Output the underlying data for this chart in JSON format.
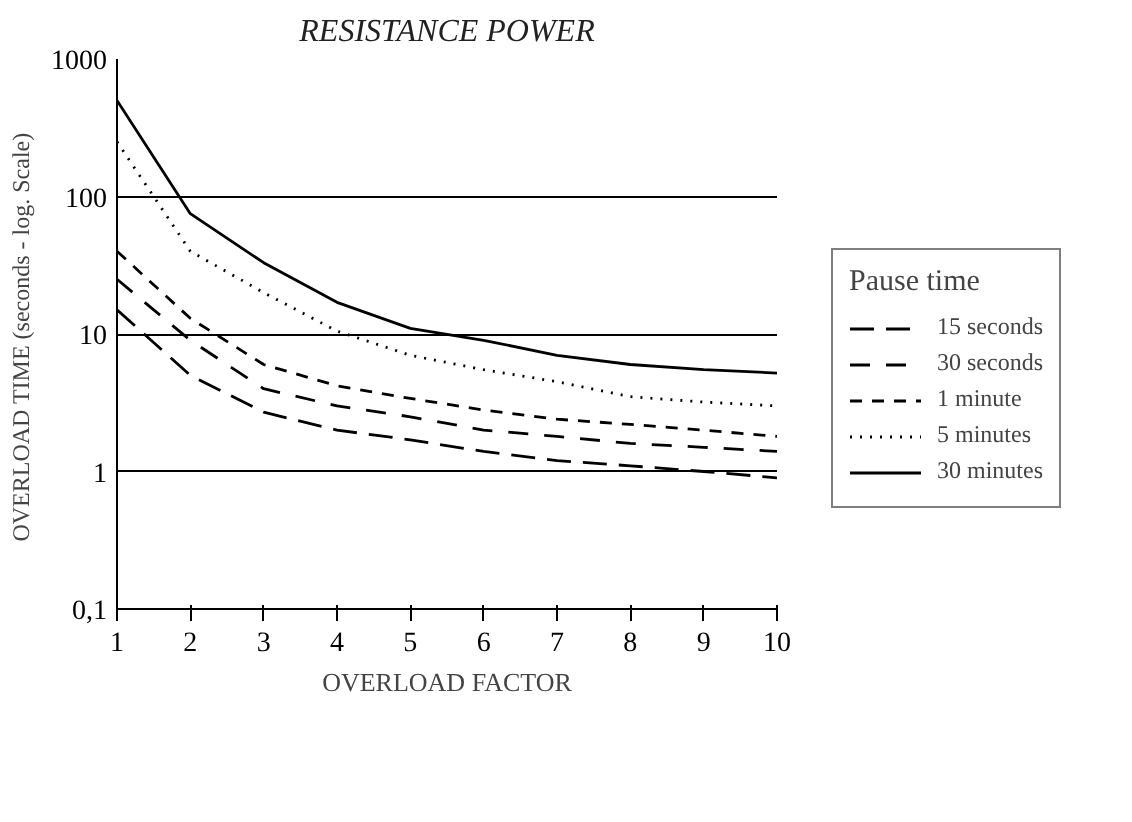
{
  "chart_data": {
    "type": "line",
    "title": "RESISTANCE POWER",
    "xlabel": "OVERLOAD FACTOR",
    "ylabel": "OVERLOAD TIME  (seconds - log. Scale)",
    "legend_title": "Pause time",
    "x": [
      1,
      2,
      3,
      4,
      5,
      6,
      7,
      8,
      9,
      10
    ],
    "series": [
      {
        "name": "15 seconds",
        "color": "#000000",
        "line_style": "dashed",
        "values": [
          15,
          5,
          2.7,
          2,
          1.7,
          1.4,
          1.2,
          1.1,
          1,
          0.9
        ]
      },
      {
        "name": "30 seconds",
        "color": "#000000",
        "line_style": "dashed",
        "values": [
          25,
          9,
          4,
          3,
          2.5,
          2,
          1.8,
          1.6,
          1.5,
          1.4
        ]
      },
      {
        "name": "1 minute",
        "color": "#000000",
        "line_style": "dashed",
        "values": [
          40,
          13,
          6,
          4.2,
          3.4,
          2.8,
          2.4,
          2.2,
          2,
          1.8
        ]
      },
      {
        "name": "5 minutes",
        "color": "#000000",
        "line_style": "dotted",
        "values": [
          250,
          40,
          20,
          10.5,
          7,
          5.5,
          4.5,
          3.5,
          3.2,
          3
        ]
      },
      {
        "name": "30 minutes",
        "color": "#000000",
        "line_style": "solid",
        "values": [
          500,
          75,
          33,
          17,
          11,
          9,
          7,
          6,
          5.5,
          5.2
        ]
      }
    ],
    "log": "y",
    "xlim": [
      1,
      10
    ],
    "xticks": [
      1,
      2,
      3,
      4,
      5,
      6,
      7,
      8,
      9,
      10
    ],
    "ylim": [
      0.1,
      1000
    ],
    "yticks": [
      {
        "value": 0.1,
        "label": "0,1"
      },
      1,
      10,
      100,
      1000
    ],
    "grid": "y",
    "legend": "right",
    "marker": "none"
  }
}
